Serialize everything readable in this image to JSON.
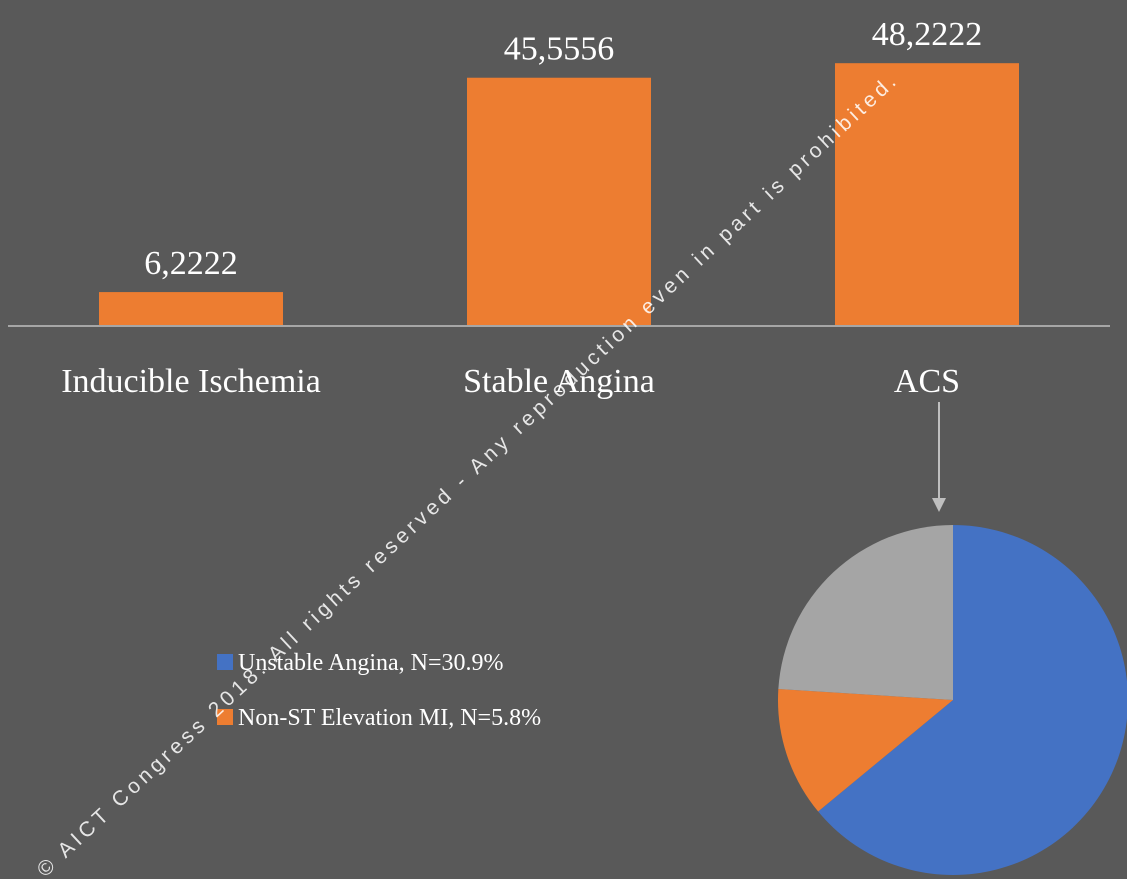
{
  "chart_data": [
    {
      "type": "bar",
      "categories": [
        "Inducible Ischemia",
        "Stable Angina",
        "ACS"
      ],
      "values": [
        6.2222,
        45.5556,
        48.2222
      ],
      "value_labels": [
        "6,2222",
        "45,5556",
        "48,2222"
      ],
      "color": "#ed7d31"
    },
    {
      "type": "pie",
      "labels": [
        "Unstable Angina, N=30.9%",
        "Non-ST Elevation MI, N=5.8%",
        null
      ],
      "values": [
        64,
        12,
        24
      ],
      "colors": [
        "#4472c4",
        "#ed7d31",
        "#a5a5a5"
      ]
    }
  ],
  "watermark": "© AICT Congress 2018. All rights reserved - Any reproduction even in part is prohibited."
}
